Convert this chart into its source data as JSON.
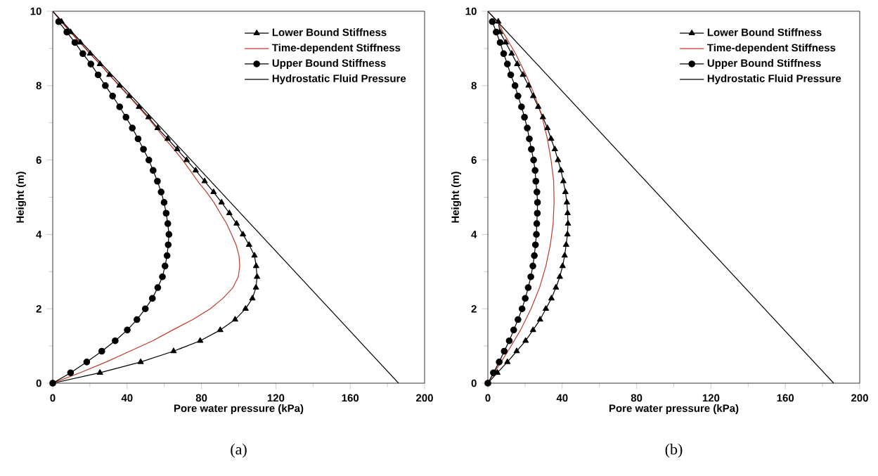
{
  "chart_data": [
    {
      "type": "line",
      "xlabel": "Pore water pressure (kPa)",
      "ylabel": "Height (m)",
      "xlim": [
        0,
        200
      ],
      "ylim": [
        0,
        10
      ],
      "xticks": [
        0,
        40,
        80,
        120,
        160,
        200
      ],
      "yticks": [
        0,
        2,
        4,
        6,
        8,
        10
      ],
      "legend": "top right",
      "annotations": [
        "(a)"
      ],
      "series": [
        {
          "name": "Lower Bound Stiffness",
          "color": "#000000",
          "marker": "triangle",
          "x": [
            0,
            25.4,
            47.3,
            65.0,
            79.3,
            90.1,
            98.1,
            103.7,
            107.4,
            109.3,
            109.9,
            109.4,
            108.5,
            105.6,
            102.3,
            98.9,
            95.0,
            90.8,
            86.5,
            81.7,
            76.9,
            72.0,
            66.9,
            61.8,
            56.4,
            51.5,
            46.4,
            41.1,
            35.9,
            30.5,
            25.4,
            20.1,
            14.8,
            9.6,
            4.7
          ],
          "values": [
            0,
            0.28,
            0.57,
            0.86,
            1.14,
            1.43,
            1.71,
            2.0,
            2.28,
            2.57,
            2.86,
            3.15,
            3.43,
            3.72,
            4.0,
            4.29,
            4.57,
            4.86,
            5.14,
            5.43,
            5.72,
            6.0,
            6.29,
            6.57,
            6.86,
            7.15,
            7.43,
            7.72,
            8.0,
            8.29,
            8.58,
            8.86,
            9.16,
            9.44,
            9.72
          ]
        },
        {
          "name": "Time-dependent Stiffness",
          "color": "#c0392b",
          "marker": "none",
          "x": [
            0,
            14.6,
            28.7,
            41.5,
            53.7,
            64.5,
            75.3,
            84.7,
            91.5,
            96.9,
            99.8,
            100.6,
            100.2,
            98.6,
            96.2,
            93.5,
            90.1,
            86.7,
            82.7,
            78.0,
            73.9,
            69.9,
            65.2,
            60.4,
            55.7,
            51.0,
            46.0,
            40.9,
            35.6,
            30.5,
            25.4,
            20.0,
            14.6,
            9.4,
            4.6,
            0
          ],
          "values": [
            0,
            0.28,
            0.57,
            0.86,
            1.14,
            1.43,
            1.71,
            2.0,
            2.28,
            2.57,
            2.86,
            3.15,
            3.43,
            3.72,
            4.0,
            4.29,
            4.57,
            4.86,
            5.14,
            5.43,
            5.72,
            6.0,
            6.29,
            6.57,
            6.86,
            7.15,
            7.43,
            7.72,
            8.0,
            8.29,
            8.58,
            8.86,
            9.16,
            9.44,
            9.72,
            10
          ]
        },
        {
          "name": "Upper Bound Stiffness",
          "color": "#000000",
          "marker": "circle",
          "x": [
            0,
            9.6,
            18.3,
            26.4,
            33.6,
            40.1,
            45.3,
            49.8,
            53.6,
            56.5,
            59.0,
            60.4,
            61.5,
            62.1,
            62.5,
            61.9,
            61.0,
            59.9,
            58.3,
            56.3,
            54.0,
            51.7,
            48.8,
            45.9,
            42.8,
            39.4,
            36.0,
            32.2,
            28.3,
            24.4,
            20.5,
            16.2,
            11.9,
            7.6,
            3.2
          ],
          "values": [
            0,
            0.28,
            0.57,
            0.86,
            1.14,
            1.43,
            1.71,
            2.0,
            2.28,
            2.57,
            2.86,
            3.15,
            3.43,
            3.72,
            4.0,
            4.29,
            4.57,
            4.86,
            5.14,
            5.43,
            5.72,
            6.0,
            6.29,
            6.57,
            6.86,
            7.15,
            7.43,
            7.72,
            8.0,
            8.29,
            8.58,
            8.86,
            9.16,
            9.44,
            9.72
          ]
        },
        {
          "name": "Hydrostatic Fluid Pressure",
          "color": "#000000",
          "marker": "none",
          "x": [
            0,
            186
          ],
          "values": [
            10,
            0
          ]
        }
      ]
    },
    {
      "type": "line",
      "xlabel": "Pore water pressure (kPa)",
      "ylabel": "Height (m)",
      "xlim": [
        0,
        200
      ],
      "ylim": [
        0,
        10
      ],
      "xticks": [
        0,
        40,
        80,
        120,
        160,
        200
      ],
      "yticks": [
        0,
        2,
        4,
        6,
        8,
        10
      ],
      "legend": "top right",
      "annotations": [
        "(b)"
      ],
      "series": [
        {
          "name": "Lower Bound Stiffness",
          "color": "#000000",
          "marker": "triangle",
          "x": [
            0,
            5.1,
            10.5,
            15.5,
            20.3,
            24.3,
            28.1,
            31.2,
            34.2,
            36.6,
            38.7,
            40.2,
            41.3,
            42.1,
            42.8,
            43.1,
            42.9,
            42.5,
            41.7,
            40.6,
            39.3,
            37.7,
            36.0,
            34.0,
            32.0,
            29.6,
            27.1,
            24.4,
            21.9,
            18.9,
            15.8,
            12.8,
            9.6,
            6.5,
            5.6
          ],
          "values": [
            0,
            0.28,
            0.57,
            0.86,
            1.14,
            1.43,
            1.71,
            2.0,
            2.28,
            2.57,
            2.86,
            3.15,
            3.43,
            3.72,
            4.0,
            4.29,
            4.57,
            4.86,
            5.14,
            5.43,
            5.72,
            6.0,
            6.29,
            6.57,
            6.86,
            7.15,
            7.43,
            7.72,
            8.0,
            8.29,
            8.58,
            8.86,
            9.16,
            9.44,
            9.72
          ]
        },
        {
          "name": "Time-dependent Stiffness",
          "color": "#c0392b",
          "marker": "none",
          "x": [
            0,
            3.4,
            10.8,
            17.6,
            23.2,
            27.8,
            31.2,
            33.6,
            35.1,
            35.6,
            35.4,
            34.0,
            32.0,
            29.2,
            25.4,
            20.5,
            14.9,
            8.1,
            5.4,
            0
          ],
          "values": [
            0,
            0.28,
            0.86,
            1.43,
            2.0,
            2.57,
            3.15,
            3.72,
            4.29,
            4.86,
            5.43,
            6.0,
            6.57,
            7.15,
            7.72,
            8.29,
            8.86,
            9.44,
            9.72,
            10
          ]
        },
        {
          "name": "Upper Bound Stiffness",
          "color": "#000000",
          "marker": "circle",
          "x": [
            0,
            3.0,
            6.1,
            8.8,
            11.5,
            13.9,
            16.2,
            18.4,
            20.1,
            21.7,
            23.1,
            24.2,
            25.0,
            25.6,
            26.1,
            26.3,
            26.6,
            26.7,
            26.4,
            25.8,
            25.4,
            24.6,
            23.4,
            22.3,
            21.2,
            19.7,
            18.1,
            16.2,
            14.6,
            12.3,
            10.5,
            8.5,
            6.6,
            4.5,
            2.4
          ],
          "values": [
            0,
            0.28,
            0.57,
            0.86,
            1.14,
            1.43,
            1.71,
            2.0,
            2.28,
            2.57,
            2.86,
            3.15,
            3.43,
            3.72,
            4.0,
            4.29,
            4.57,
            4.86,
            5.14,
            5.43,
            5.72,
            6.0,
            6.29,
            6.57,
            6.86,
            7.15,
            7.43,
            7.72,
            8.0,
            8.29,
            8.58,
            8.86,
            9.16,
            9.44,
            9.72
          ]
        },
        {
          "name": "Hydrostatic Fluid Pressure",
          "color": "#000000",
          "marker": "none",
          "x": [
            0,
            186
          ],
          "values": [
            10,
            0
          ]
        }
      ]
    }
  ]
}
